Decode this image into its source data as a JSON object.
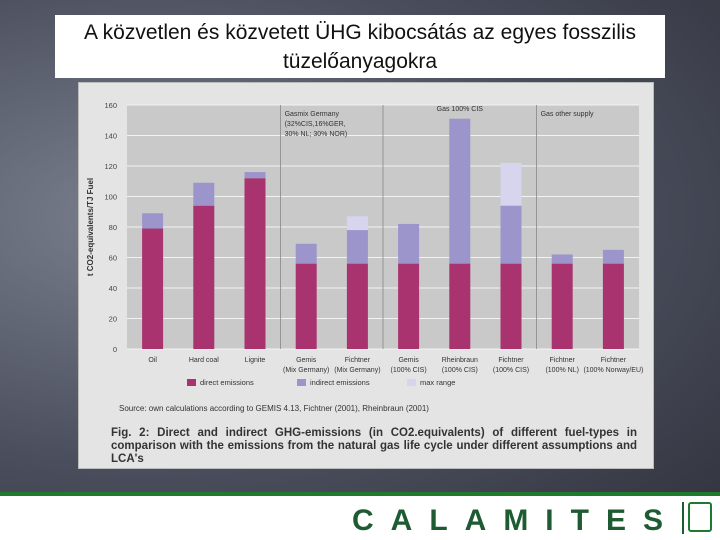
{
  "slide": {
    "title": "A közvetlen és közvetett ÜHG kibocsátás az egyes fosszilis tüzelőanyagokra",
    "brand": "CALAMITES"
  },
  "figure": {
    "source": "Source: own calculations according to GEMIS 4.13, Fichtner (2001), Rheinbraun (2001)",
    "caption": "Fig. 2: Direct and indirect GHG-emissions (in CO2.equivalents) of different fuel-types in comparison with the emissions from the natural gas life cycle under different assumptions and LCA's"
  },
  "chart_data": {
    "type": "bar",
    "stacked": true,
    "ylabel": "t CO2-equivalents/TJ Fuel",
    "ylim": [
      0,
      160
    ],
    "yticks": [
      0,
      20,
      40,
      60,
      80,
      100,
      120,
      140,
      160
    ],
    "grid": true,
    "legend_position": "bottom",
    "categories": [
      "Oil",
      "Hard coal",
      "Lignite",
      "Gemis (Mix Germany)",
      "Fichtner (Mix Germany)",
      "Gemis (100% CIS)",
      "Rheinbraun (100% CIS)",
      "Fichtner (100% CIS)",
      "Fichtner (100% NL)",
      "Fichtner (100% Norway/EU)"
    ],
    "series": [
      {
        "name": "direct emissions",
        "color": "#a8336f",
        "values": [
          79,
          94,
          112,
          56,
          56,
          56,
          56,
          56,
          56,
          56
        ]
      },
      {
        "name": "indirect emissions",
        "color": "#9b95cc",
        "values": [
          10,
          15,
          4,
          13,
          22,
          26,
          95,
          38,
          6,
          9
        ]
      },
      {
        "name": "max range",
        "color": "#d7d4ee",
        "values": [
          0,
          0,
          0,
          0,
          9,
          0,
          0,
          28,
          0,
          0
        ]
      }
    ],
    "annotations": [
      {
        "text": "Gasmix Germany (32%CIS,16%GER, 30% NL; 30% NOR)"
      },
      {
        "text": "Gas 100% CIS"
      },
      {
        "text": "Gas other supply"
      }
    ]
  }
}
